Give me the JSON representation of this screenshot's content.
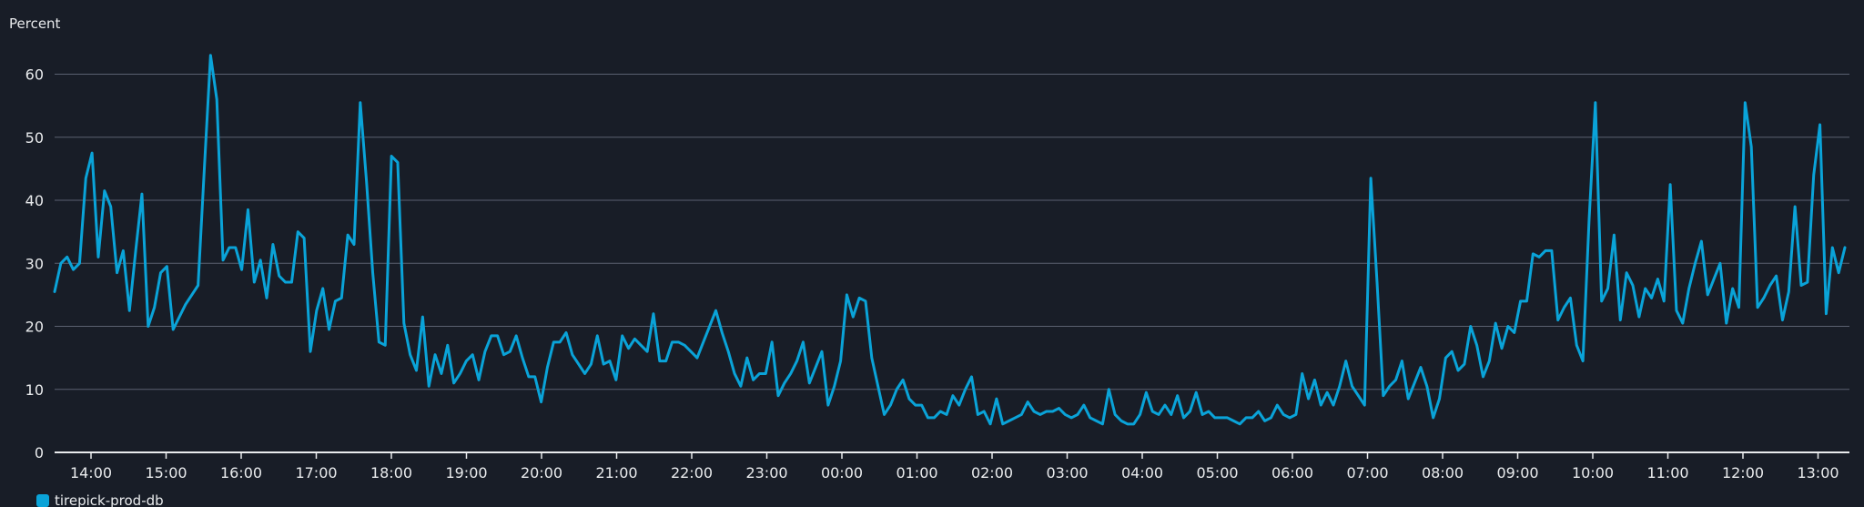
{
  "chart_data": {
    "type": "line",
    "ylabel": "Percent",
    "ylim": [
      0,
      66
    ],
    "yticks": [
      "0",
      "10",
      "20",
      "30",
      "40",
      "50",
      "60"
    ],
    "xticks": [
      "14:00",
      "15:00",
      "16:00",
      "17:00",
      "18:00",
      "19:00",
      "20:00",
      "21:00",
      "22:00",
      "23:00",
      "00:00",
      "01:00",
      "02:00",
      "03:00",
      "04:00",
      "05:00",
      "06:00",
      "07:00",
      "08:00",
      "09:00",
      "10:00",
      "11:00",
      "12:00",
      "13:00"
    ],
    "grid": "horizontal",
    "legend_position": "bottom-left",
    "series": [
      {
        "name": "tirepick-prod-db",
        "color": "#0aa3d8",
        "values": [
          25.5,
          30,
          31,
          29,
          30,
          43.5,
          47.5,
          31,
          41.5,
          39,
          28.5,
          32,
          22.5,
          32,
          41,
          20,
          23,
          28.5,
          29.5,
          19.5,
          21.5,
          23.5,
          25,
          26.5,
          45,
          63,
          56,
          30.5,
          32.5,
          32.5,
          29,
          38.5,
          27,
          30.5,
          24.5,
          33,
          28,
          27,
          27,
          35,
          34,
          16,
          22.5,
          26,
          19.5,
          24,
          24.5,
          34.5,
          33,
          55.5,
          43,
          28.5,
          17.5,
          17,
          47,
          46,
          20.5,
          15.5,
          13,
          21.5,
          10.5,
          15.5,
          12.5,
          17,
          11,
          12.5,
          14.5,
          15.5,
          11.5,
          16,
          18.5,
          18.5,
          15.5,
          16,
          18.5,
          15,
          12,
          12,
          8,
          13.5,
          17.5,
          17.5,
          19,
          15.5,
          14,
          12.5,
          14,
          18.5,
          14,
          14.5,
          11.5,
          18.5,
          16.5,
          18,
          17,
          16,
          22,
          14.5,
          14.5,
          17.5,
          17.5,
          17,
          16,
          15,
          17.5,
          20,
          22.5,
          19,
          16,
          12.5,
          10.5,
          15,
          11.5,
          12.5,
          12.5,
          17.5,
          9,
          11,
          12.5,
          14.5,
          17.5,
          11,
          13.5,
          16,
          7.5,
          10.5,
          14.5,
          25,
          21.5,
          24.5,
          24,
          15,
          10.5,
          6,
          7.5,
          10,
          11.5,
          8.5,
          7.5,
          7.5,
          5.5,
          5.5,
          6.5,
          6,
          9,
          7.5,
          10,
          12,
          6,
          6.5,
          4.5,
          8.5,
          4.5,
          5,
          5.5,
          6,
          8,
          6.5,
          6,
          6.5,
          6.5,
          7,
          6,
          5.5,
          6,
          7.5,
          5.5,
          5,
          4.5,
          10,
          6,
          5,
          4.5,
          4.5,
          6,
          9.5,
          6.5,
          6,
          7.5,
          6,
          9,
          5.5,
          6.5,
          9.5,
          6,
          6.5,
          5.5,
          5.5,
          5.5,
          5,
          4.5,
          5.5,
          5.5,
          6.5,
          5,
          5.5,
          7.5,
          6,
          5.5,
          6,
          12.5,
          8.5,
          11.5,
          7.5,
          9.5,
          7.5,
          10.5,
          14.5,
          10.5,
          9,
          7.5,
          43.5,
          27,
          9,
          10.5,
          11.5,
          14.5,
          8.5,
          11,
          13.5,
          10.5,
          5.5,
          8.5,
          15,
          16,
          13,
          14,
          20,
          17,
          12,
          14.5,
          20.5,
          16.5,
          20,
          19,
          24,
          24,
          31.5,
          31,
          32,
          32,
          21,
          23,
          24.5,
          17,
          14.5,
          37,
          55.5,
          24,
          26,
          34.5,
          21,
          28.5,
          26.5,
          21.5,
          26,
          24.5,
          27.5,
          24,
          42.5,
          22.5,
          20.5,
          26,
          30,
          33.5,
          25,
          27.5,
          30,
          20.5,
          26,
          23,
          55.5,
          48.5,
          23,
          24.5,
          26.5,
          28,
          21,
          25.5,
          39,
          26.5,
          27,
          44,
          52,
          22,
          32.5,
          28.5,
          32.5
        ]
      }
    ]
  }
}
